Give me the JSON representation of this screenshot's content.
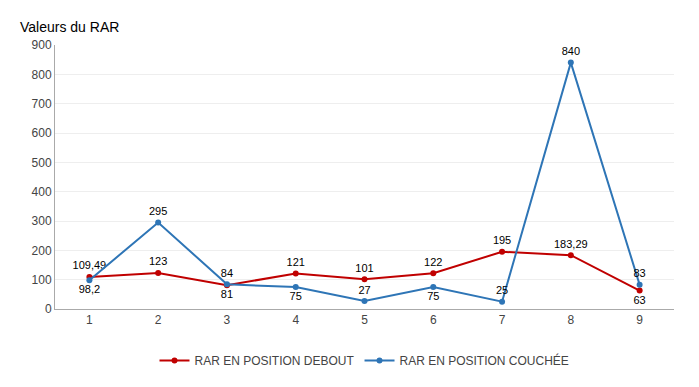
{
  "chart_data": {
    "type": "line",
    "ylabel": "Valeurs du RAR",
    "x": [
      1,
      2,
      3,
      4,
      5,
      6,
      7,
      8,
      9
    ],
    "series": [
      {
        "name": "RAR EN POSITION DEBOUT",
        "color": "#c00000",
        "values": [
          109.49,
          123,
          81,
          121,
          101,
          122,
          195,
          183.29,
          63
        ],
        "value_labels": [
          "109,49",
          "123",
          "81",
          "121",
          "101",
          "122",
          "195",
          "183,29",
          "63"
        ]
      },
      {
        "name": "RAR EN POSITION COUCHÉE",
        "color": "#2e75b6",
        "values": [
          98.2,
          295,
          84,
          75,
          27,
          75,
          25,
          840,
          83
        ],
        "value_labels": [
          "98,2",
          "295",
          "84",
          "75",
          "27",
          "75",
          "25",
          "840",
          "83"
        ]
      }
    ],
    "xlim": [
      0.5,
      9.5
    ],
    "xticks": [
      1,
      2,
      3,
      4,
      5,
      6,
      7,
      8,
      9
    ],
    "ylim": [
      0,
      900
    ],
    "yticks": [
      0,
      100,
      200,
      300,
      400,
      500,
      600,
      700,
      800,
      900
    ],
    "grid": true,
    "legend": "bottom",
    "marker": "circle",
    "data_labels": true
  }
}
